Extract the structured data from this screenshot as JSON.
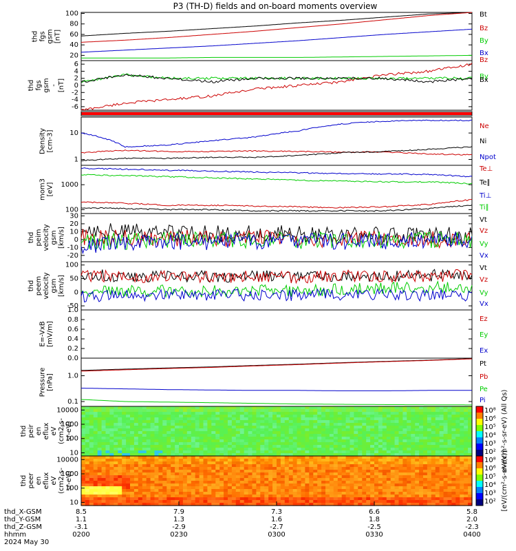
{
  "title": "P3 (TH-D) fields and on-board moments overview",
  "colors": {
    "black": "#000000",
    "red": "#cc0000",
    "green": "#00cc00",
    "blue": "#0000cc",
    "bar": "#ff0000"
  },
  "chart_data": [
    {
      "type": "line",
      "id": "fgs",
      "ylabel": [
        "thd",
        "fgs",
        "gsm",
        "[nT]"
      ],
      "yticks": [
        "100",
        "80",
        "60",
        "40",
        "20"
      ],
      "ylim": [
        10,
        102
      ],
      "series": [
        {
          "name": "Bt",
          "color": "black",
          "values": [
            57,
            62,
            66,
            71,
            76,
            82,
            87,
            93,
            99,
            102
          ]
        },
        {
          "name": "Bz",
          "color": "red",
          "values": [
            45,
            49,
            54,
            60,
            66,
            73,
            80,
            88,
            96,
            102
          ]
        },
        {
          "name": "By",
          "color": "green",
          "values": [
            15,
            15,
            15,
            16,
            16,
            16,
            17,
            18,
            19,
            20
          ]
        },
        {
          "name": "Bx",
          "color": "blue",
          "values": [
            26,
            30,
            34,
            38,
            43,
            48,
            54,
            60,
            65,
            70
          ]
        }
      ],
      "legend": [
        "Bt",
        "Bz",
        "By",
        "Bx"
      ]
    },
    {
      "type": "line",
      "id": "fgs-dsl",
      "ylabel": [
        "thd",
        "fgs",
        "gsm",
        "-",
        "[nT]"
      ],
      "yticks": [
        "6",
        "4",
        "2",
        "0",
        "-2",
        "-4",
        "-6"
      ],
      "ylim": [
        -7,
        7
      ],
      "series": [
        {
          "name": "Bz",
          "color": "red",
          "values": [
            -7,
            -5,
            -4,
            -3,
            -1,
            0,
            1,
            3,
            4,
            6
          ]
        },
        {
          "name": "By",
          "color": "green",
          "values": [
            1,
            3,
            2,
            2,
            2,
            2,
            2,
            2,
            2,
            2
          ]
        },
        {
          "name": "Bx",
          "color": "black",
          "values": [
            1,
            3,
            2,
            1,
            2,
            2,
            2,
            2,
            1,
            2
          ]
        }
      ],
      "legend": [
        "Bz",
        "By",
        "Bx"
      ]
    },
    {
      "type": "line",
      "id": "density",
      "ylabel": [
        "Density",
        "[cm-3]"
      ],
      "log": true,
      "yticks": [
        "10",
        "1"
      ],
      "ylim": [
        0.6,
        40
      ],
      "series": [
        {
          "name": "Ne",
          "color": "red",
          "values": [
            1.8,
            2.2,
            2.0,
            2.0,
            2.1,
            2.0,
            1.9,
            1.9,
            1.6,
            1.5
          ]
        },
        {
          "name": "Ni",
          "color": "black",
          "values": [
            0.9,
            1.1,
            1.1,
            1.2,
            1.2,
            1.4,
            1.8,
            2.0,
            2.4,
            3.0
          ]
        },
        {
          "name": "Npot",
          "color": "blue",
          "values": [
            10,
            3.0,
            3.5,
            5.0,
            7.0,
            12,
            22,
            28,
            30,
            30
          ]
        }
      ],
      "legend": [
        "Ne",
        "Ni",
        "Npot"
      ]
    },
    {
      "type": "line",
      "id": "temp",
      "ylabel": [
        "mom3",
        "[eV]"
      ],
      "log": true,
      "yticks": [
        "1000",
        "100"
      ],
      "ylim": [
        70,
        6000
      ],
      "series": [
        {
          "name": "Te⊥",
          "color": "red",
          "values": [
            200,
            180,
            150,
            150,
            140,
            130,
            120,
            130,
            160,
            250
          ]
        },
        {
          "name": "Te∥",
          "color": "black",
          "values": [
            120,
            110,
            100,
            100,
            90,
            90,
            90,
            90,
            110,
            150
          ]
        },
        {
          "name": "Ti⊥",
          "color": "blue",
          "values": [
            4500,
            4200,
            3800,
            3500,
            3200,
            3000,
            2800,
            2700,
            2600,
            2100
          ]
        },
        {
          "name": "Ti∥",
          "color": "green",
          "values": [
            2500,
            2300,
            2100,
            1900,
            1700,
            1500,
            1400,
            1300,
            1300,
            1100
          ]
        }
      ],
      "legend": [
        "Te⊥",
        "Te∥",
        "Ti⊥",
        "Ti∥"
      ]
    },
    {
      "type": "line",
      "id": "peim",
      "ylabel": [
        "thd",
        "peim",
        "velocity",
        "gsm",
        "[km/s]"
      ],
      "yticks": [
        "30",
        "20",
        "10",
        "0",
        "-10",
        "-20"
      ],
      "ylim": [
        -28,
        33
      ],
      "series": [
        {
          "name": "Vt",
          "color": "black",
          "values": [
            14,
            10,
            8,
            7,
            8,
            7,
            6,
            7,
            6,
            5
          ]
        },
        {
          "name": "Vz",
          "color": "red",
          "values": [
            3,
            2,
            2,
            1,
            2,
            1,
            0,
            1,
            0,
            0
          ]
        },
        {
          "name": "Vy",
          "color": "green",
          "values": [
            -3,
            -2,
            -1,
            -1,
            0,
            -1,
            0,
            0,
            0,
            0
          ]
        },
        {
          "name": "Vx",
          "color": "blue",
          "values": [
            -8,
            -3,
            -2,
            -3,
            -2,
            -2,
            -2,
            -2,
            -1,
            -2
          ]
        }
      ],
      "legend": [
        "Vt",
        "Vz",
        "Vy",
        "Vx"
      ]
    },
    {
      "type": "line",
      "id": "peem",
      "ylabel": [
        "thd",
        "peem",
        "velocity",
        "gsm",
        "[km/s]"
      ],
      "yticks": [
        "100",
        "50",
        "0",
        "-50"
      ],
      "ylim": [
        -65,
        112
      ],
      "series": [
        {
          "name": "Vt",
          "color": "black",
          "values": [
            65,
            58,
            60,
            57,
            60,
            58,
            62,
            60,
            62,
            64
          ]
        },
        {
          "name": "Vz",
          "color": "red",
          "values": [
            62,
            55,
            57,
            55,
            58,
            55,
            60,
            58,
            60,
            62
          ]
        },
        {
          "name": "Vy",
          "color": "green",
          "values": [
            5,
            3,
            5,
            4,
            6,
            5,
            10,
            15,
            18,
            20
          ]
        },
        {
          "name": "Vx",
          "color": "blue",
          "values": [
            -15,
            -10,
            -12,
            -10,
            -10,
            -10,
            -8,
            -10,
            -12,
            -10
          ]
        }
      ],
      "legend": [
        "Vt",
        "Vz",
        "Vy",
        "Vx"
      ]
    },
    {
      "type": "line",
      "id": "efield",
      "ylabel": [
        "E=-VxB",
        "[mV/m]"
      ],
      "yticks": [
        "1.0",
        "0.8",
        "0.6",
        "0.4",
        "0.2",
        "0.0"
      ],
      "ylim": [
        0,
        1
      ],
      "series": [],
      "legend": [
        "Ez",
        "Ey",
        "Ex"
      ]
    },
    {
      "type": "line",
      "id": "pressure",
      "ylabel": [
        "Pressure",
        "[nPa]"
      ],
      "log": true,
      "yticks": [
        "1.0",
        "0.1"
      ],
      "ylim": [
        0.065,
        4.8
      ],
      "series": [
        {
          "name": "Pt",
          "color": "black",
          "values": [
            1.6,
            1.8,
            2.0,
            2.2,
            2.5,
            2.8,
            3.2,
            3.6,
            4.0,
            4.6
          ]
        },
        {
          "name": "Pb",
          "color": "red",
          "values": [
            1.5,
            1.7,
            1.9,
            2.1,
            2.4,
            2.7,
            3.1,
            3.5,
            3.9,
            4.5
          ]
        },
        {
          "name": "Pe",
          "color": "green",
          "values": [
            0.12,
            0.1,
            0.095,
            0.09,
            0.085,
            0.08,
            0.078,
            0.076,
            0.075,
            0.074
          ]
        },
        {
          "name": "Pi",
          "color": "blue",
          "values": [
            0.33,
            0.31,
            0.29,
            0.28,
            0.27,
            0.27,
            0.26,
            0.26,
            0.27,
            0.27
          ]
        }
      ],
      "legend": [
        "Pt",
        "Pb",
        "Pe",
        "Pi"
      ]
    },
    {
      "type": "heatmap",
      "id": "peir",
      "ylabel": [
        "thd",
        "peir",
        "en",
        "eflux",
        "eV",
        "(cm2-s-",
        "sr-eV)"
      ],
      "yticks": [
        "10000",
        "1000",
        "100",
        "10"
      ],
      "colorbar": {
        "ticks": [
          "10⁸",
          "10⁶",
          "10⁵",
          "10⁴",
          "10³",
          "10²"
        ],
        "label": "eV/(cm²-s-sr-eV) (All Qs)"
      }
    },
    {
      "type": "heatmap",
      "id": "peer",
      "ylabel": [
        "thd",
        "peer",
        "en",
        "eflux",
        "eV",
        "(cm2-s-",
        "sr-eV)"
      ],
      "yticks": [
        "10000",
        "1000",
        "100",
        "10"
      ],
      "colorbar": {
        "ticks": [
          "10⁸",
          "10⁶",
          "10⁵",
          "10⁴",
          "10³",
          "10²"
        ],
        "label": "[eV/(cm²-s-sr-eV)]"
      }
    }
  ],
  "xaxis": {
    "rows": [
      {
        "label": "thd_X-GSM",
        "values": [
          "8.5",
          "7.9",
          "7.3",
          "6.6",
          "5.8"
        ]
      },
      {
        "label": "thd_Y-GSM",
        "values": [
          "1.1",
          "1.3",
          "1.6",
          "1.8",
          "2.0"
        ]
      },
      {
        "label": "thd_Z-GSM",
        "values": [
          "-3.1",
          "-2.9",
          "-2.7",
          "-2.5",
          "-2.3"
        ]
      },
      {
        "label": "hhmm",
        "values": [
          "0200",
          "0230",
          "0300",
          "0330",
          "0400"
        ]
      }
    ],
    "date": "2024 May 30"
  }
}
